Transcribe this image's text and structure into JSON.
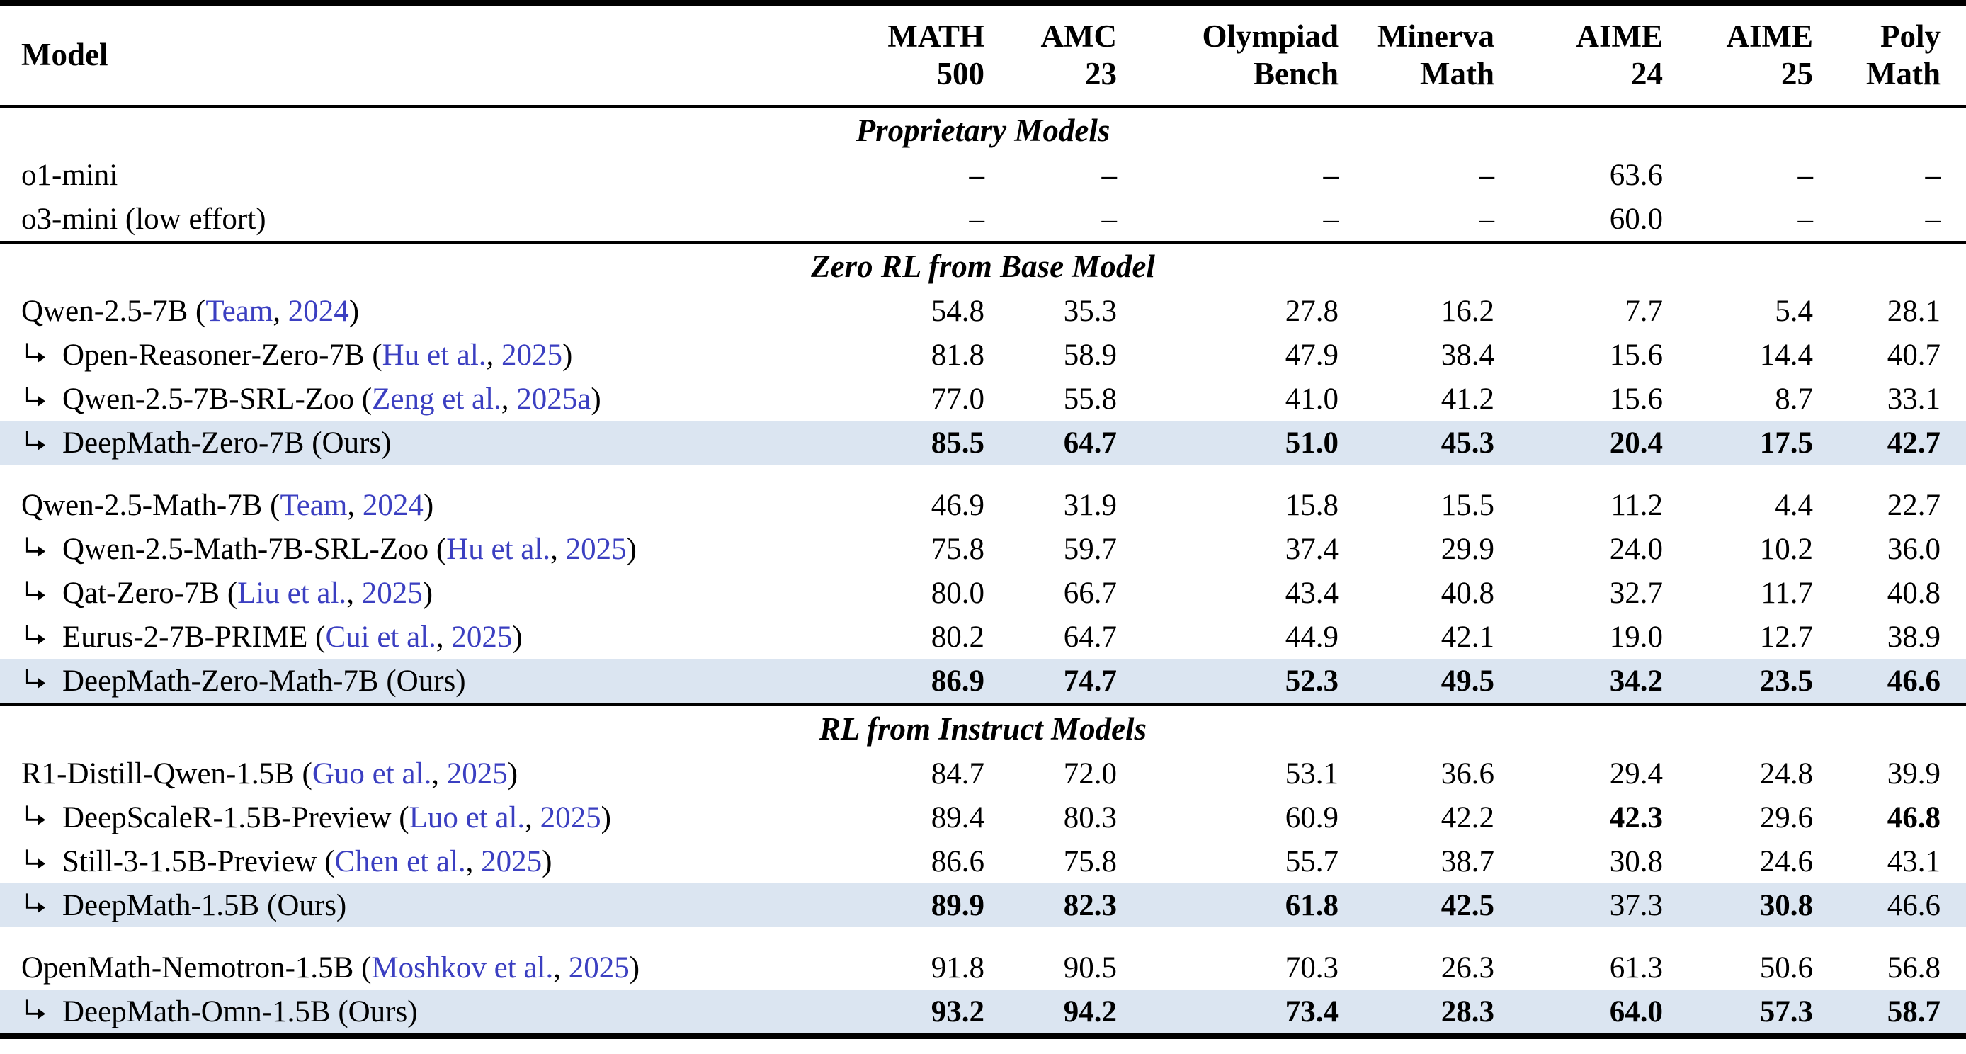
{
  "icons": {
    "subrow_arrow": "↳"
  },
  "colors": {
    "highlight_row": "#dbe5f1",
    "citation_link": "#3b3fc1",
    "rule": "#000000"
  },
  "labels": {
    "ours_suffix": "(Ours)",
    "missing_value": "–"
  },
  "header": {
    "model_label": "Model",
    "metrics": [
      {
        "line1": "MATH",
        "line2": "500"
      },
      {
        "line1": "AMC",
        "line2": "23"
      },
      {
        "line1": "Olympiad",
        "line2": "Bench"
      },
      {
        "line1": "Minerva",
        "line2": "Math"
      },
      {
        "line1": "AIME",
        "line2": "24"
      },
      {
        "line1": "AIME",
        "line2": "25"
      },
      {
        "line1": "Poly",
        "line2": "Math"
      }
    ]
  },
  "sections": [
    {
      "title": "Proprietary Models",
      "groups": [
        {
          "rows": [
            {
              "arrow": false,
              "label": "o1-mini",
              "cite": null,
              "ours": false,
              "highlight": false,
              "values": [
                "–",
                "–",
                "–",
                "–",
                "63.6",
                "–",
                "–"
              ],
              "bold": [
                false,
                false,
                false,
                false,
                false,
                false,
                false
              ]
            },
            {
              "arrow": false,
              "label": "o3-mini (low effort)",
              "cite": null,
              "ours": false,
              "highlight": false,
              "values": [
                "–",
                "–",
                "–",
                "–",
                "60.0",
                "–",
                "–"
              ],
              "bold": [
                false,
                false,
                false,
                false,
                false,
                false,
                false
              ]
            }
          ]
        }
      ]
    },
    {
      "title": "Zero RL from Base Model",
      "groups": [
        {
          "rows": [
            {
              "arrow": false,
              "label": "Qwen-2.5-7B",
              "cite": {
                "names": "Team",
                "year": "2024"
              },
              "ours": false,
              "highlight": false,
              "values": [
                "54.8",
                "35.3",
                "27.8",
                "16.2",
                "7.7",
                "5.4",
                "28.1"
              ],
              "bold": [
                false,
                false,
                false,
                false,
                false,
                false,
                false
              ]
            },
            {
              "arrow": true,
              "label": "Open-Reasoner-Zero-7B",
              "cite": {
                "names": "Hu et al.",
                "year": "2025"
              },
              "ours": false,
              "highlight": false,
              "values": [
                "81.8",
                "58.9",
                "47.9",
                "38.4",
                "15.6",
                "14.4",
                "40.7"
              ],
              "bold": [
                false,
                false,
                false,
                false,
                false,
                false,
                false
              ]
            },
            {
              "arrow": true,
              "label": "Qwen-2.5-7B-SRL-Zoo",
              "cite": {
                "names": "Zeng et al.",
                "year": "2025a"
              },
              "ours": false,
              "highlight": false,
              "values": [
                "77.0",
                "55.8",
                "41.0",
                "41.2",
                "15.6",
                "8.7",
                "33.1"
              ],
              "bold": [
                false,
                false,
                false,
                false,
                false,
                false,
                false
              ]
            },
            {
              "arrow": true,
              "label": "DeepMath-Zero-7B",
              "cite": null,
              "ours": true,
              "highlight": true,
              "values": [
                "85.5",
                "64.7",
                "51.0",
                "45.3",
                "20.4",
                "17.5",
                "42.7"
              ],
              "bold": [
                true,
                true,
                true,
                true,
                true,
                true,
                true
              ]
            }
          ]
        },
        {
          "rows": [
            {
              "arrow": false,
              "label": "Qwen-2.5-Math-7B",
              "cite": {
                "names": "Team",
                "year": "2024"
              },
              "ours": false,
              "highlight": false,
              "values": [
                "46.9",
                "31.9",
                "15.8",
                "15.5",
                "11.2",
                "4.4",
                "22.7"
              ],
              "bold": [
                false,
                false,
                false,
                false,
                false,
                false,
                false
              ]
            },
            {
              "arrow": true,
              "label": "Qwen-2.5-Math-7B-SRL-Zoo",
              "cite": {
                "names": "Hu et al.",
                "year": "2025"
              },
              "ours": false,
              "highlight": false,
              "values": [
                "75.8",
                "59.7",
                "37.4",
                "29.9",
                "24.0",
                "10.2",
                "36.0"
              ],
              "bold": [
                false,
                false,
                false,
                false,
                false,
                false,
                false
              ]
            },
            {
              "arrow": true,
              "label": "Qat-Zero-7B",
              "cite": {
                "names": "Liu et al.",
                "year": "2025"
              },
              "ours": false,
              "highlight": false,
              "values": [
                "80.0",
                "66.7",
                "43.4",
                "40.8",
                "32.7",
                "11.7",
                "40.8"
              ],
              "bold": [
                false,
                false,
                false,
                false,
                false,
                false,
                false
              ]
            },
            {
              "arrow": true,
              "label": "Eurus-2-7B-PRIME",
              "cite": {
                "names": "Cui et al.",
                "year": "2025"
              },
              "ours": false,
              "highlight": false,
              "values": [
                "80.2",
                "64.7",
                "44.9",
                "42.1",
                "19.0",
                "12.7",
                "38.9"
              ],
              "bold": [
                false,
                false,
                false,
                false,
                false,
                false,
                false
              ]
            },
            {
              "arrow": true,
              "label": "DeepMath-Zero-Math-7B",
              "cite": null,
              "ours": true,
              "highlight": true,
              "values": [
                "86.9",
                "74.7",
                "52.3",
                "49.5",
                "34.2",
                "23.5",
                "46.6"
              ],
              "bold": [
                true,
                true,
                true,
                true,
                true,
                true,
                true
              ]
            }
          ]
        }
      ]
    },
    {
      "title": "RL from Instruct Models",
      "groups": [
        {
          "rows": [
            {
              "arrow": false,
              "label": "R1-Distill-Qwen-1.5B",
              "cite": {
                "names": "Guo et al.",
                "year": "2025"
              },
              "ours": false,
              "highlight": false,
              "values": [
                "84.7",
                "72.0",
                "53.1",
                "36.6",
                "29.4",
                "24.8",
                "39.9"
              ],
              "bold": [
                false,
                false,
                false,
                false,
                false,
                false,
                false
              ]
            },
            {
              "arrow": true,
              "label": "DeepScaleR-1.5B-Preview",
              "cite": {
                "names": "Luo et al.",
                "year": "2025"
              },
              "ours": false,
              "highlight": false,
              "values": [
                "89.4",
                "80.3",
                "60.9",
                "42.2",
                "42.3",
                "29.6",
                "46.8"
              ],
              "bold": [
                false,
                false,
                false,
                false,
                true,
                false,
                true
              ]
            },
            {
              "arrow": true,
              "label": "Still-3-1.5B-Preview",
              "cite": {
                "names": "Chen et al.",
                "year": "2025"
              },
              "ours": false,
              "highlight": false,
              "values": [
                "86.6",
                "75.8",
                "55.7",
                "38.7",
                "30.8",
                "24.6",
                "43.1"
              ],
              "bold": [
                false,
                false,
                false,
                false,
                false,
                false,
                false
              ]
            },
            {
              "arrow": true,
              "label": "DeepMath-1.5B",
              "cite": null,
              "ours": true,
              "highlight": true,
              "values": [
                "89.9",
                "82.3",
                "61.8",
                "42.5",
                "37.3",
                "30.8",
                "46.6"
              ],
              "bold": [
                true,
                true,
                true,
                true,
                false,
                true,
                false
              ]
            }
          ]
        },
        {
          "rows": [
            {
              "arrow": false,
              "label": "OpenMath-Nemotron-1.5B",
              "cite": {
                "names": "Moshkov et al.",
                "year": "2025"
              },
              "ours": false,
              "highlight": false,
              "values": [
                "91.8",
                "90.5",
                "70.3",
                "26.3",
                "61.3",
                "50.6",
                "56.8"
              ],
              "bold": [
                false,
                false,
                false,
                false,
                false,
                false,
                false
              ]
            },
            {
              "arrow": true,
              "label": "DeepMath-Omn-1.5B",
              "cite": null,
              "ours": true,
              "highlight": true,
              "values": [
                "93.2",
                "94.2",
                "73.4",
                "28.3",
                "64.0",
                "57.3",
                "58.7"
              ],
              "bold": [
                true,
                true,
                true,
                true,
                true,
                true,
                true
              ]
            }
          ]
        }
      ]
    }
  ]
}
